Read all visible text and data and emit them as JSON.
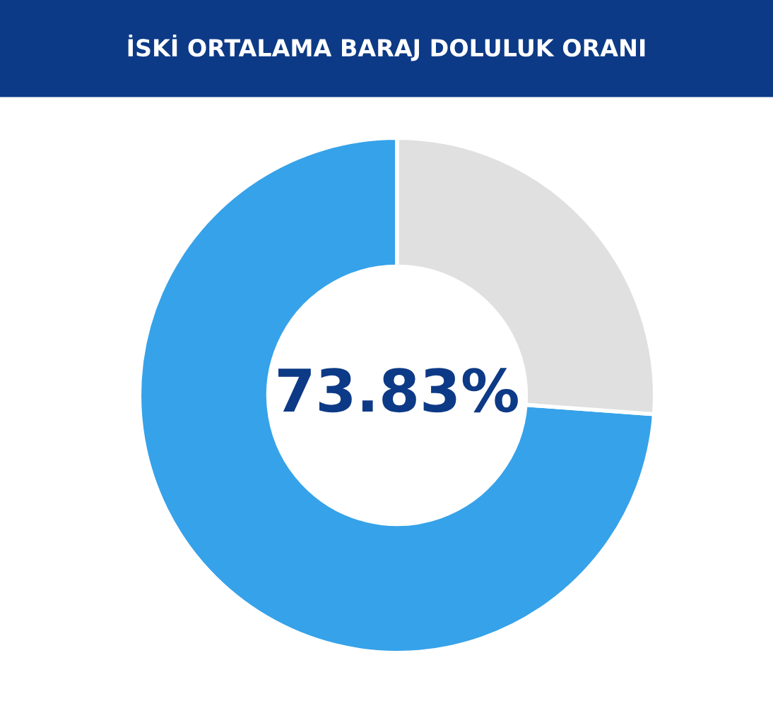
{
  "chart_data": {
    "type": "donut",
    "title": "İSKİ ORTALAMA BARAJ DOLULUK ORANI",
    "categories": [
      null,
      null
    ],
    "values": [
      73.83,
      26.17
    ],
    "colors": [
      "#36a2e9",
      "#e0e0e0"
    ],
    "annotations": [
      "73.83%"
    ],
    "legend": false
  }
}
